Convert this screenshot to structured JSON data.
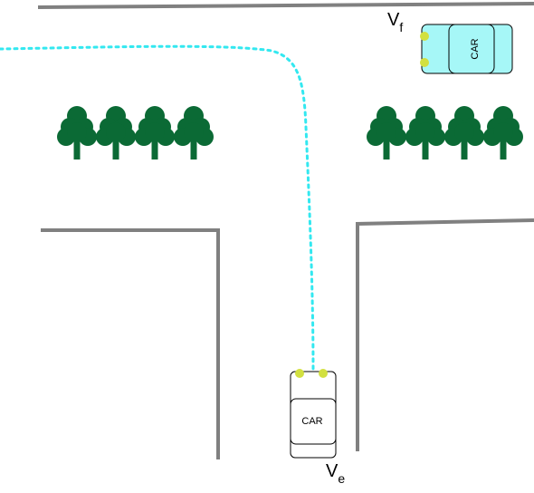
{
  "colors": {
    "wall": "#808080",
    "tree": "#0b6a35",
    "trajectory": "#33e8f0",
    "sensor": "#d2e040",
    "car_front_fill": "#a6f7f7",
    "car_ego_fill": "#ffffff",
    "car_stroke": "#000000"
  },
  "vehicles": {
    "front": {
      "label_main": "V",
      "label_sub": "f",
      "car_text": "CAR"
    },
    "ego": {
      "label_main": "V",
      "label_sub": "e",
      "car_text": "CAR"
    }
  },
  "tree_groups": {
    "left_count": 4,
    "right_count": 4
  }
}
